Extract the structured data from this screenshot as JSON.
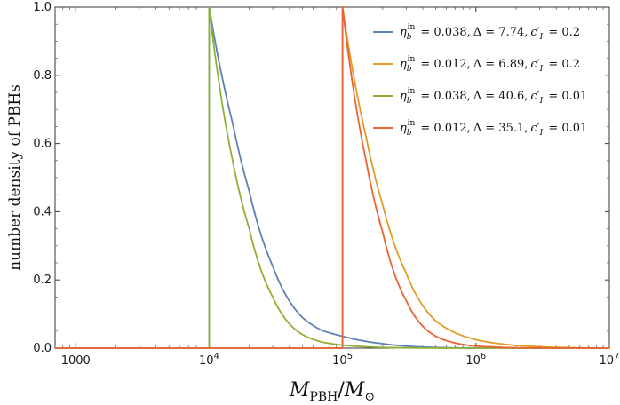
{
  "chart_data": {
    "type": "line",
    "x_scale": "log",
    "xlabel": "M_PBH/M_⊙",
    "ylabel": "number density of PBHs",
    "xlim": [
      700,
      10000000
    ],
    "ylim": [
      0,
      1.0
    ],
    "x_ticks": [
      {
        "value": 1000,
        "label": "1000"
      },
      {
        "value": 10000,
        "label": "10^4"
      },
      {
        "value": 100000,
        "label": "10^5"
      },
      {
        "value": 1000000,
        "label": "10^6"
      },
      {
        "value": 10000000,
        "label": "10^7"
      }
    ],
    "y_ticks": [
      {
        "value": 0.0,
        "label": "0.0"
      },
      {
        "value": 0.2,
        "label": "0.2"
      },
      {
        "value": 0.4,
        "label": "0.4"
      },
      {
        "value": 0.6,
        "label": "0.6"
      },
      {
        "value": 0.8,
        "label": "0.8"
      },
      {
        "value": 1.0,
        "label": "1.0"
      }
    ],
    "grid": false,
    "legend_position": "top-right",
    "series": [
      {
        "name": "η_b^in = 0.038, Δ = 7.74, c'_I = 0.2",
        "color": "#5e81b5",
        "m_min": 10000,
        "points": [
          [
            700,
            0
          ],
          [
            10000,
            0
          ],
          [
            10000,
            1.0
          ],
          [
            15000,
            0.66
          ],
          [
            20000,
            0.46
          ],
          [
            30000,
            0.24
          ],
          [
            50000,
            0.09
          ],
          [
            70000,
            0.052
          ],
          [
            100000,
            0.035
          ],
          [
            150000,
            0.02
          ],
          [
            200000,
            0.013
          ],
          [
            300000,
            0.006
          ],
          [
            500000,
            0.002
          ],
          [
            1000000,
            0.0003
          ],
          [
            10000000,
            0
          ]
        ]
      },
      {
        "name": "η_b^in = 0.012, Δ = 6.89, c'_I = 0.2",
        "color": "#e19c24",
        "m_min": 100000,
        "points": [
          [
            700,
            0
          ],
          [
            100000,
            0
          ],
          [
            100000,
            1.0
          ],
          [
            150000,
            0.62
          ],
          [
            200000,
            0.42
          ],
          [
            300000,
            0.22
          ],
          [
            500000,
            0.08
          ],
          [
            700000,
            0.045
          ],
          [
            1000000,
            0.025
          ],
          [
            1500000,
            0.013
          ],
          [
            2000000,
            0.008
          ],
          [
            3000000,
            0.004
          ],
          [
            5000000,
            0.0015
          ],
          [
            10000000,
            0.0002
          ]
        ]
      },
      {
        "name": "η_b^in = 0.038, Δ = 40.6, c'_I = 0.01",
        "color": "#8fb032",
        "m_min": 10000,
        "points": [
          [
            700,
            0
          ],
          [
            10000,
            0
          ],
          [
            10000,
            1.0
          ],
          [
            15000,
            0.55
          ],
          [
            20000,
            0.35
          ],
          [
            30000,
            0.15
          ],
          [
            50000,
            0.04
          ],
          [
            70000,
            0.018
          ],
          [
            100000,
            0.009
          ],
          [
            150000,
            0.004
          ],
          [
            200000,
            0.002
          ],
          [
            300000,
            0.0008
          ],
          [
            500000,
            0.0002
          ],
          [
            1000000,
            0
          ],
          [
            10000000,
            0
          ]
        ]
      },
      {
        "name": "η_b^in = 0.012, Δ = 35.1, c'_I = 0.01",
        "color": "#eb6235",
        "m_min": 100000,
        "points": [
          [
            700,
            0
          ],
          [
            100000,
            0
          ],
          [
            100000,
            1.0
          ],
          [
            150000,
            0.55
          ],
          [
            200000,
            0.34
          ],
          [
            300000,
            0.14
          ],
          [
            500000,
            0.035
          ],
          [
            700000,
            0.015
          ],
          [
            1000000,
            0.006
          ],
          [
            1500000,
            0.0025
          ],
          [
            2000000,
            0.001
          ],
          [
            3000000,
            0.0004
          ],
          [
            10000000,
            0
          ]
        ]
      }
    ]
  },
  "legend": {
    "entries": [
      {
        "eta_val": "= 0.038,",
        "delta": "Δ = 7.74,",
        "c_val": "= 0.2"
      },
      {
        "eta_val": "= 0.012,",
        "delta": "Δ = 6.89,",
        "c_val": "= 0.2"
      },
      {
        "eta_val": "= 0.038,",
        "delta": "Δ = 40.6,",
        "c_val": "= 0.01"
      },
      {
        "eta_val": "= 0.012,",
        "delta": "Δ = 35.1,",
        "c_val": "= 0.01"
      }
    ]
  }
}
